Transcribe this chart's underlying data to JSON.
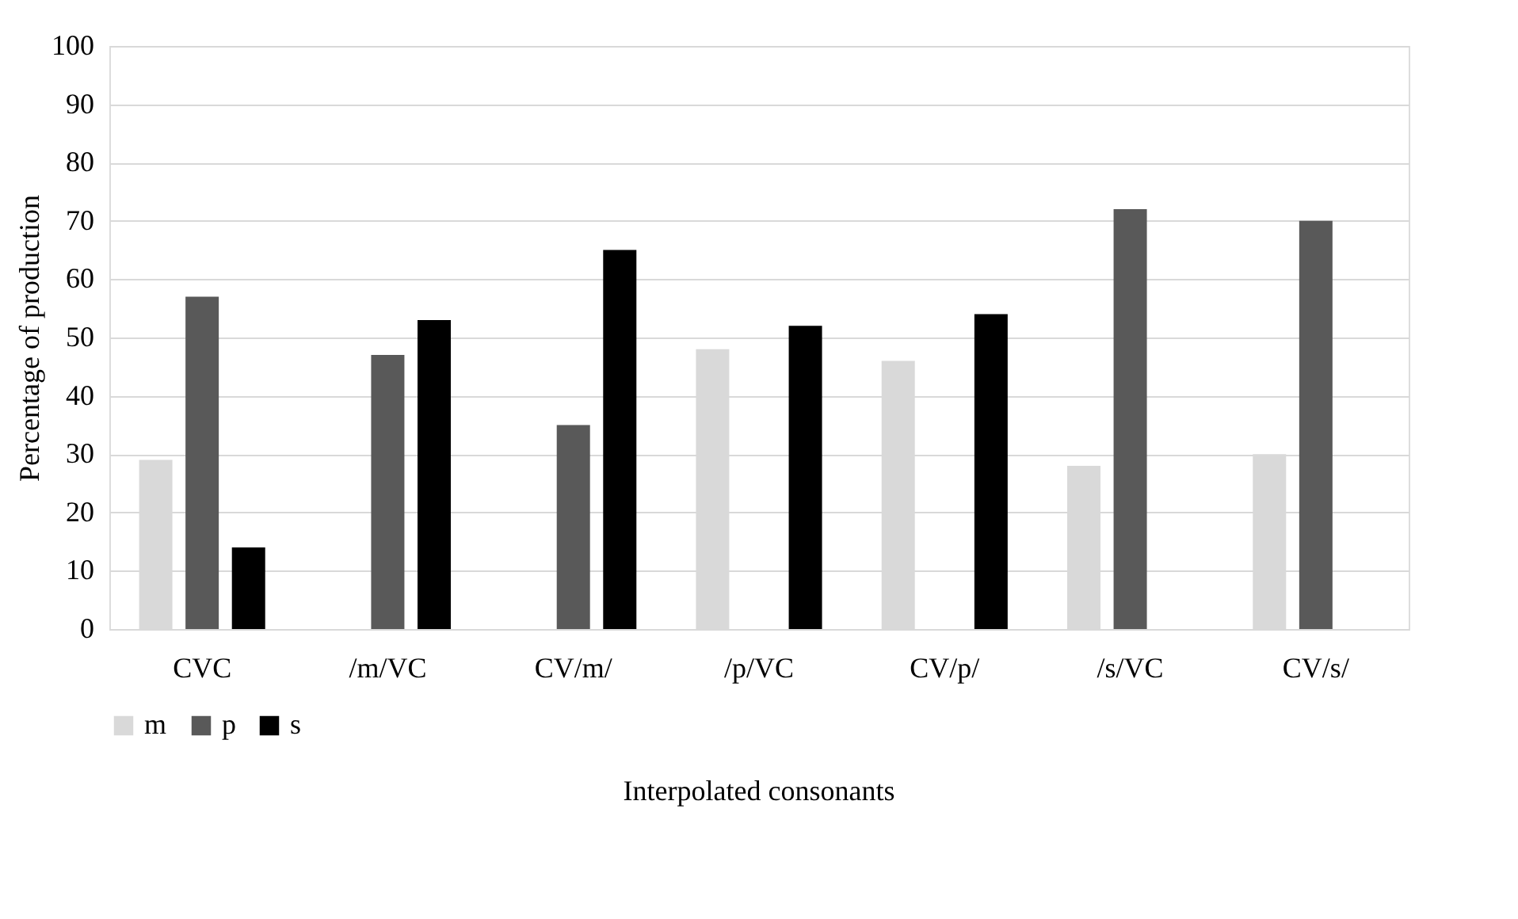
{
  "chart_data": {
    "type": "bar",
    "ylabel": "Percentage of production",
    "xlabel": "Interpolated consonants",
    "categories": [
      "CVC",
      "/m/VC",
      "CV/m/",
      "/p/VC",
      "CV/p/",
      "/s/VC",
      "CV/s/"
    ],
    "series": [
      {
        "name": "m",
        "color": "#d9d9d9",
        "values": [
          29,
          null,
          null,
          48,
          46,
          28,
          30
        ]
      },
      {
        "name": "p",
        "color": "#595959",
        "values": [
          57,
          47,
          35,
          null,
          null,
          72,
          70
        ]
      },
      {
        "name": "s",
        "color": "#000000",
        "values": [
          14,
          53,
          65,
          52,
          54,
          null,
          null
        ]
      }
    ],
    "ylim": [
      0,
      100
    ],
    "yticks": [
      0,
      10,
      20,
      30,
      40,
      50,
      60,
      70,
      80,
      90,
      100
    ],
    "grid": "y",
    "legend": "bottom"
  }
}
